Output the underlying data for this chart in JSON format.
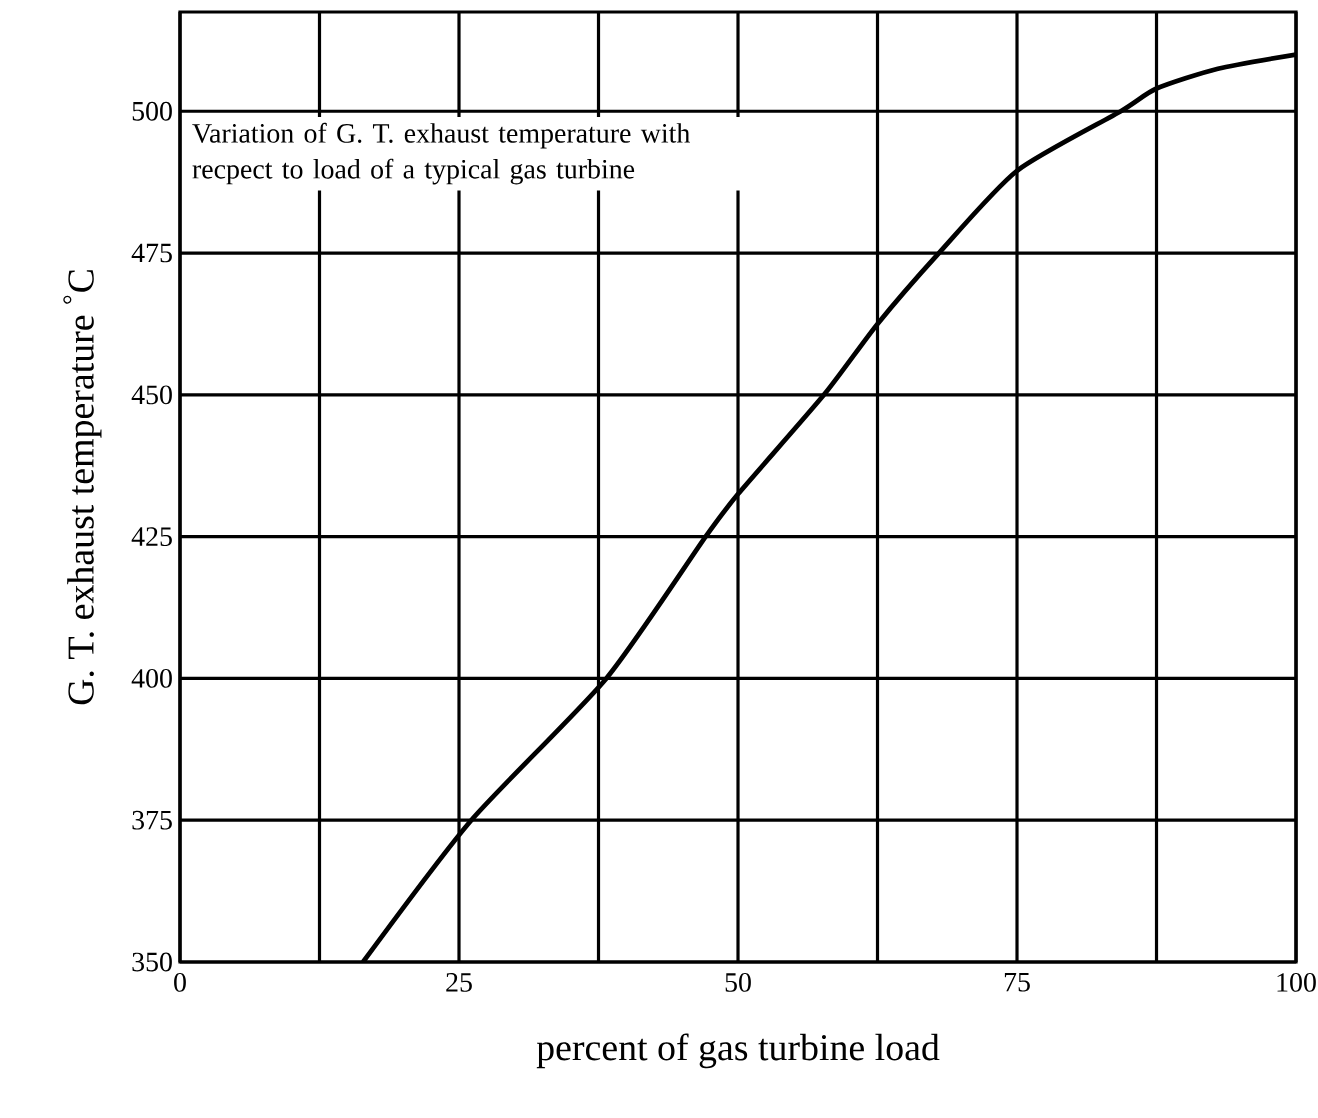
{
  "chart_data": {
    "type": "line",
    "xlabel": "percent of gas turbine load",
    "ylabel": "G. T. exhaust temperature $^{°}$C",
    "annotations": [
      "Variation of G. T. exhaust temperature with recpect to load of a typical gas turbine"
    ],
    "series": [
      {
        "color": "#000000",
        "x": [
          16.4,
          26.1,
          38.2,
          47.1,
          50,
          57.7,
          62.5,
          68,
          75,
          84.3,
          87.5,
          93,
          100
        ],
        "values": [
          350,
          375,
          400,
          425,
          432.5,
          450,
          462.5,
          475,
          489.5,
          500,
          504,
          507.5,
          510
        ]
      }
    ],
    "xlim": [
      0,
      100
    ],
    "xticks": [
      0,
      {
        "value": 12.5,
        "label": null
      },
      25,
      {
        "value": 37.5,
        "label": null
      },
      50,
      {
        "value": 62.5,
        "label": null
      },
      75,
      {
        "value": 87.5,
        "label": null
      },
      100
    ],
    "ylim": [
      350,
      517.5
    ],
    "yticks": [
      350,
      375,
      400,
      425,
      450,
      475,
      500
    ],
    "grid": true,
    "marker": "none",
    "line_style": "solid"
  }
}
